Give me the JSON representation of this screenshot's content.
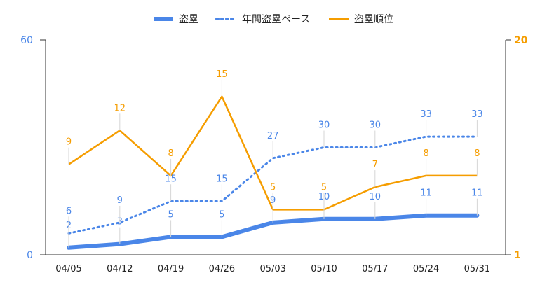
{
  "chart_data": {
    "type": "line",
    "categories": [
      "04/05",
      "04/12",
      "04/19",
      "04/26",
      "05/03",
      "05/10",
      "05/17",
      "05/24",
      "05/31"
    ],
    "y_left": {
      "range": [
        0,
        60
      ],
      "ticks": [
        "0",
        "60"
      ],
      "color": "#4a86e8"
    },
    "y_right": {
      "range": [
        1,
        20
      ],
      "ticks": [
        "1",
        "20"
      ],
      "color": "#f59d00"
    },
    "series": [
      {
        "name": "盗塁",
        "axis": "left",
        "style": "solid",
        "color": "#4a86e8",
        "values": [
          2,
          3,
          5,
          5,
          9,
          10,
          10,
          11,
          11
        ]
      },
      {
        "name": "年間盗塁ペース",
        "axis": "left",
        "style": "dotted",
        "color": "#4a86e8",
        "values": [
          6,
          9,
          15,
          15,
          27,
          30,
          30,
          33,
          33
        ]
      },
      {
        "name": "盗塁順位",
        "axis": "right",
        "style": "solid",
        "color": "#f59d00",
        "values": [
          9,
          12,
          8,
          15,
          5,
          5,
          7,
          8,
          8
        ]
      }
    ],
    "legend": "top"
  }
}
